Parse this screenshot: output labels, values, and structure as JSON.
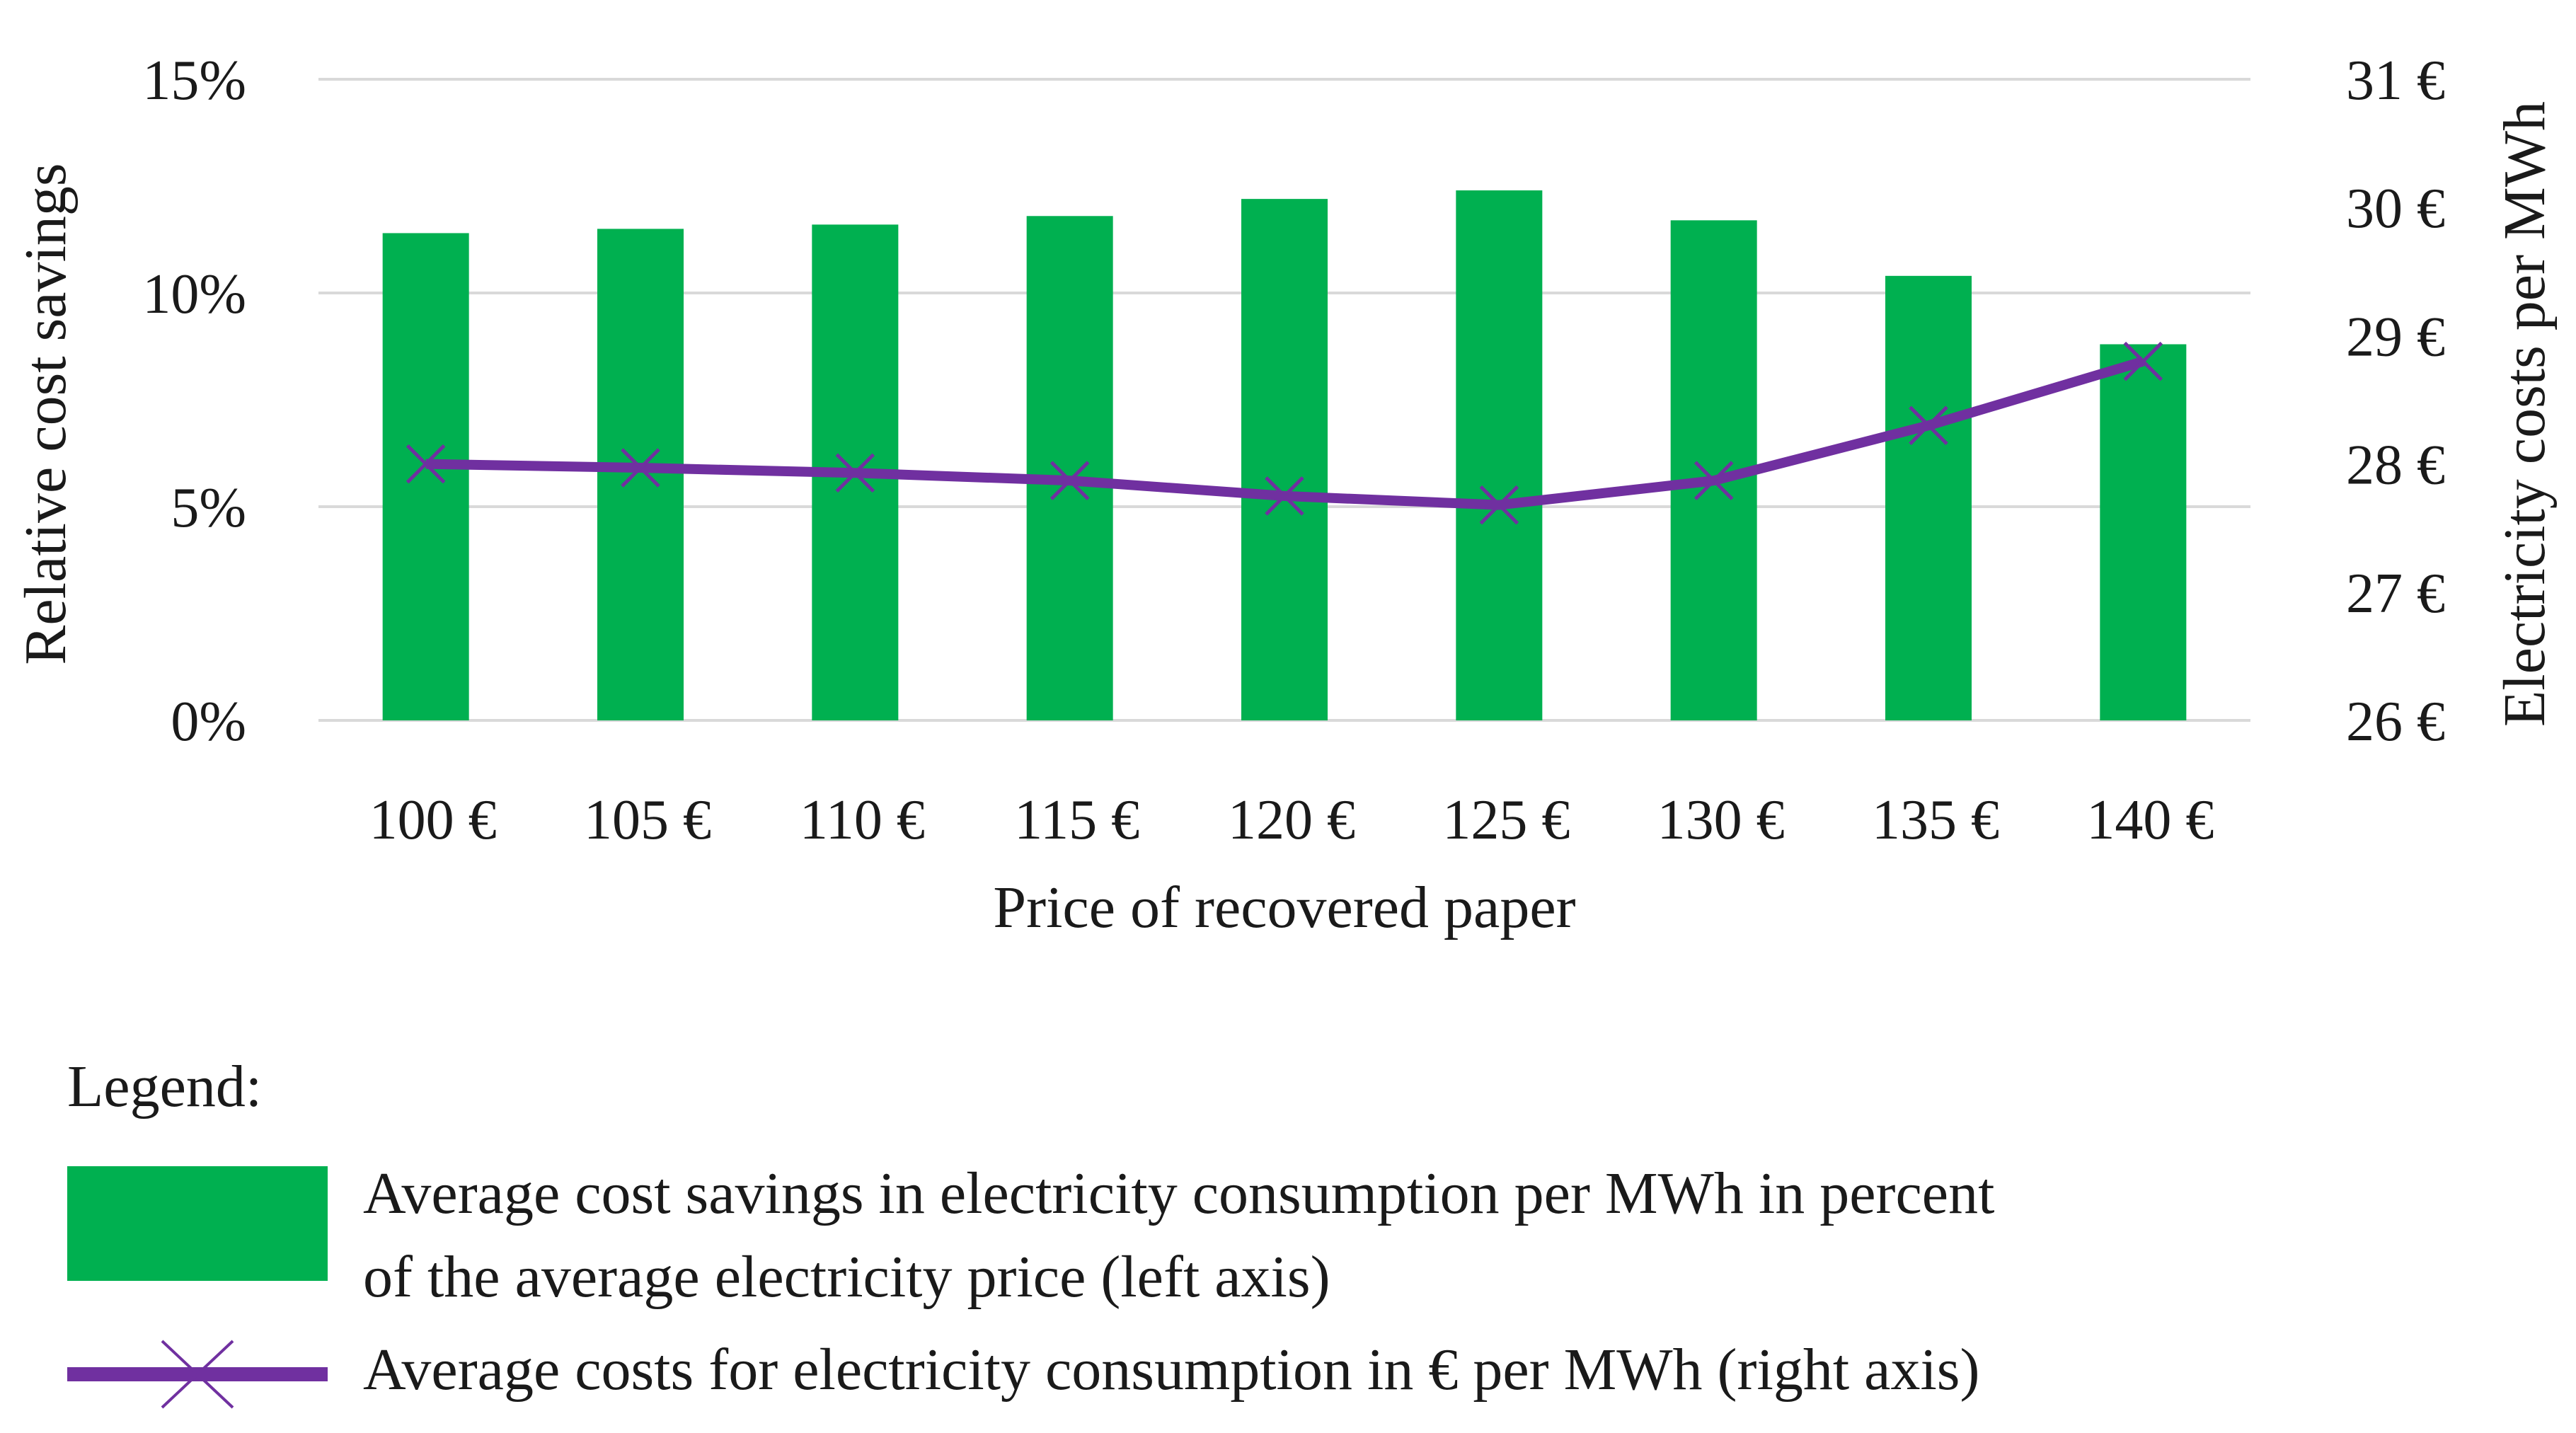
{
  "chart_data": {
    "type": "bar",
    "categories": [
      "100 €",
      "105 €",
      "110 €",
      "115 €",
      "120 €",
      "125 €",
      "130 €",
      "135 €",
      "140 €"
    ],
    "series": [
      {
        "type": "bar",
        "axis": "left",
        "values": [
          11.4,
          11.5,
          11.6,
          11.8,
          12.2,
          12.4,
          11.7,
          10.4,
          8.8
        ],
        "color": "#00b050"
      },
      {
        "type": "line",
        "axis": "right",
        "marker": "x",
        "values": [
          28.0,
          27.97,
          27.93,
          27.87,
          27.75,
          27.68,
          27.87,
          28.3,
          28.8
        ],
        "color": "#7030a0"
      }
    ],
    "xlabel": "Price of recovered paper",
    "ylabel": "Relative cost savings",
    "y2label": "Electricity costs per MWh",
    "ylim": [
      0,
      15
    ],
    "y2lim": [
      26,
      31
    ],
    "yticks": [
      "0%",
      "5%",
      "10%",
      "15%"
    ],
    "y2ticks": [
      "26 €",
      "27 €",
      "28 €",
      "29 €",
      "30 €",
      "31 €"
    ],
    "grid": true,
    "legend_position": "bottom"
  },
  "legend": {
    "title": "Legend:",
    "bar_label_line1": "Average cost savings in electricity consumption per MWh in percent",
    "bar_label_line2": "of the average electricity price (left axis)",
    "line_label": "Average costs for electricity consumption in € per MWh (right axis)"
  }
}
